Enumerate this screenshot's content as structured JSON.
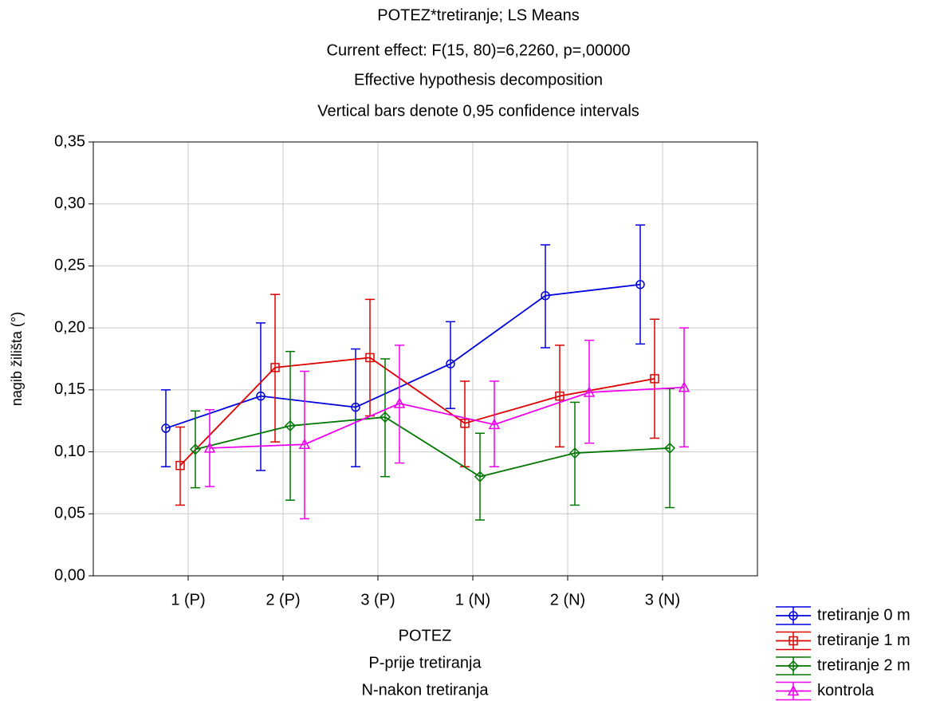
{
  "chart_data": {
    "type": "line",
    "title": [
      "POTEZ*tretiranje; LS Means",
      "Current effect: F(15, 80)=6,2260, p=,00000",
      "Effective hypothesis decomposition",
      "Vertical bars denote 0,95 confidence intervals"
    ],
    "x_label": [
      "POTEZ",
      "P-prije tretiranja",
      "N-nakon tretiranja"
    ],
    "y_label": "nagib žilišta (°)",
    "categories": [
      "1 (P)",
      "2 (P)",
      "3 (P)",
      "1 (N)",
      "2 (N)",
      "3 (N)"
    ],
    "ylim": [
      0,
      0.35
    ],
    "yticks": [
      {
        "value": 0,
        "label": "0,00"
      },
      {
        "value": 0.05,
        "label": "0,05"
      },
      {
        "value": 0.1,
        "label": "0,10"
      },
      {
        "value": 0.15,
        "label": "0,15"
      },
      {
        "value": 0.2,
        "label": "0,20"
      },
      {
        "value": 0.25,
        "label": "0,25"
      },
      {
        "value": 0.3,
        "label": "0,30"
      },
      {
        "value": 0.35,
        "label": "0,35"
      }
    ],
    "grid": true,
    "legend": "bottom-right",
    "series": [
      {
        "name": "tretiranje 0 m",
        "color": "#0000dd",
        "marker": "circle",
        "values": [
          0.119,
          0.145,
          0.136,
          0.171,
          0.226,
          0.235
        ],
        "lower": [
          0.088,
          0.085,
          0.088,
          0.135,
          0.184,
          0.187
        ],
        "upper": [
          0.15,
          0.204,
          0.183,
          0.205,
          0.267,
          0.283
        ]
      },
      {
        "name": "tretiranje 1 m",
        "color": "#dd0000",
        "marker": "square",
        "values": [
          0.089,
          0.168,
          0.176,
          0.123,
          0.145,
          0.159
        ],
        "lower": [
          0.057,
          0.108,
          0.129,
          0.088,
          0.104,
          0.111
        ],
        "upper": [
          0.12,
          0.227,
          0.223,
          0.157,
          0.186,
          0.207
        ]
      },
      {
        "name": "tretiranje 2 m",
        "color": "#007700",
        "marker": "diamond",
        "values": [
          0.102,
          0.121,
          0.128,
          0.08,
          0.099,
          0.103
        ],
        "lower": [
          0.071,
          0.061,
          0.08,
          0.045,
          0.057,
          0.055
        ],
        "upper": [
          0.133,
          0.181,
          0.175,
          0.115,
          0.14,
          0.151
        ]
      },
      {
        "name": "kontrola",
        "color": "#ee00ee",
        "marker": "triangle",
        "values": [
          0.103,
          0.106,
          0.139,
          0.122,
          0.148,
          0.152
        ],
        "lower": [
          0.072,
          0.046,
          0.091,
          0.088,
          0.107,
          0.104
        ],
        "upper": [
          0.134,
          0.165,
          0.186,
          0.157,
          0.19,
          0.2
        ]
      }
    ]
  }
}
